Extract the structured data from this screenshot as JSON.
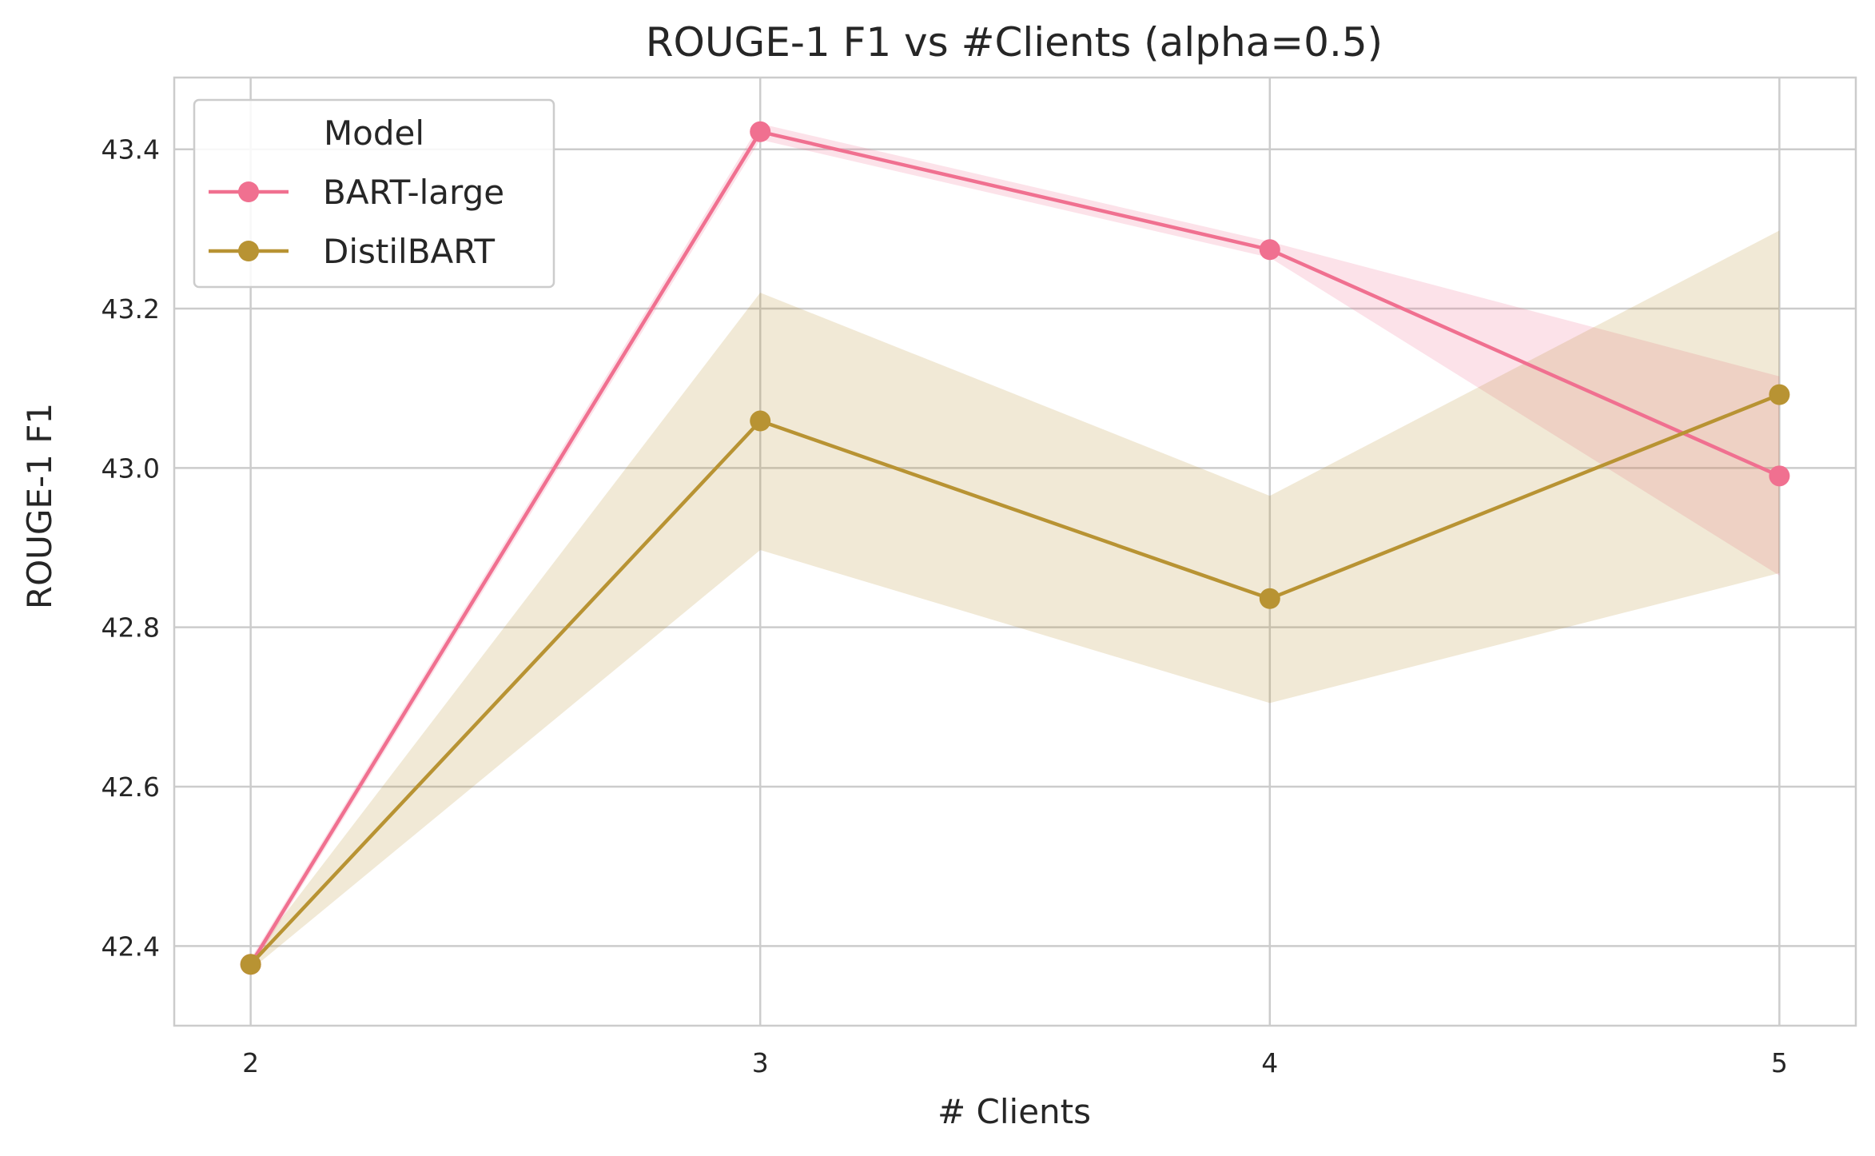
{
  "chart_data": {
    "type": "line",
    "title": "ROUGE-1 F1 vs #Clients (alpha=0.5)",
    "xlabel": "# Clients",
    "ylabel": "ROUGE-1 F1",
    "x": [
      2,
      3,
      4,
      5
    ],
    "x_tick_labels": [
      "2",
      "3",
      "4",
      "5"
    ],
    "xlim": [
      1.85,
      5.15
    ],
    "ylim": [
      42.3,
      43.49
    ],
    "y_ticks": [
      42.4,
      42.6,
      42.8,
      43.0,
      43.2,
      43.4
    ],
    "y_tick_labels": [
      "42.4",
      "42.6",
      "42.8",
      "43.0",
      "43.2",
      "43.4"
    ],
    "grid": true,
    "legend": {
      "title": "Model",
      "position": "top-left"
    },
    "series": [
      {
        "name": "BART-large",
        "color": "#f07090",
        "values": [
          42.377,
          43.422,
          43.274,
          42.99
        ],
        "ci_lower": [
          42.37,
          43.412,
          43.264,
          42.865
        ],
        "ci_upper": [
          42.384,
          43.432,
          43.284,
          43.115
        ]
      },
      {
        "name": "DistilBART",
        "color": "#b89333",
        "values": [
          42.377,
          43.059,
          42.836,
          43.092
        ],
        "ci_lower": [
          42.37,
          42.897,
          42.705,
          42.868
        ],
        "ci_upper": [
          42.384,
          43.22,
          42.965,
          43.298
        ]
      }
    ]
  }
}
